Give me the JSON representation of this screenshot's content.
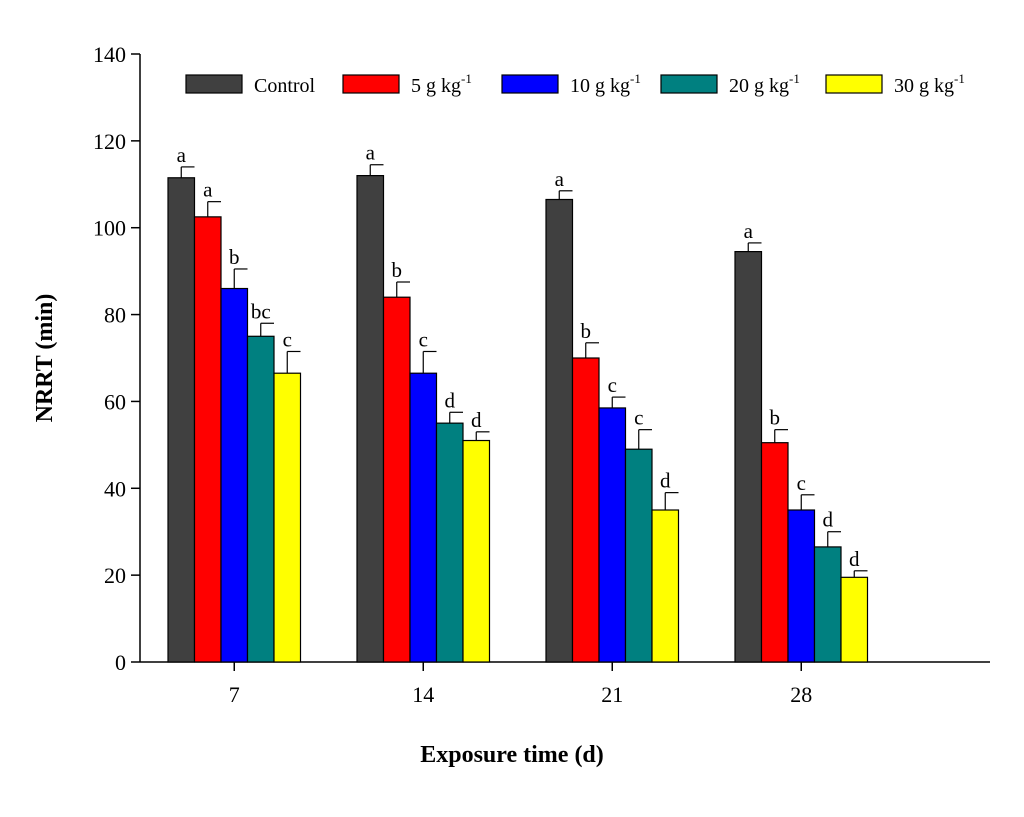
{
  "chart_data": {
    "type": "bar",
    "xlabel": "Exposure time (d)",
    "ylabel": "NRRT (min)",
    "ylim": [
      0,
      140
    ],
    "yticks": [
      0,
      20,
      40,
      60,
      80,
      100,
      120,
      140
    ],
    "categories": [
      "7",
      "14",
      "21",
      "28"
    ],
    "series": [
      {
        "name": "Control",
        "legend_main": "Control",
        "legend_sup": "",
        "color": "#404040",
        "values": [
          111.5,
          112,
          106.5,
          94.5
        ],
        "errors": [
          2.5,
          2.5,
          2,
          2
        ],
        "labels": [
          "a",
          "a",
          "a",
          "a"
        ]
      },
      {
        "name": "5  g kg-1",
        "legend_main": "5  g kg",
        "legend_sup": "-1",
        "color": "#ff0000",
        "values": [
          102.5,
          84,
          70,
          50.5
        ],
        "errors": [
          3.5,
          3.5,
          3.5,
          3
        ],
        "labels": [
          "a",
          "b",
          "b",
          "b"
        ]
      },
      {
        "name": "10 g kg-1",
        "legend_main": "10 g kg",
        "legend_sup": "-1",
        "color": "#0000ff",
        "values": [
          86,
          66.5,
          58.5,
          35
        ],
        "errors": [
          4.5,
          5,
          2.5,
          3.5
        ],
        "labels": [
          "b",
          "c",
          "c",
          "c"
        ]
      },
      {
        "name": "20 g kg-1",
        "legend_main": "20 g kg",
        "legend_sup": "-1",
        "color": "#008080",
        "values": [
          75,
          55,
          49,
          26.5
        ],
        "errors": [
          3,
          2.5,
          4.5,
          3.5
        ],
        "labels": [
          "bc",
          "d",
          "c",
          "d"
        ]
      },
      {
        "name": "30 g kg-1",
        "legend_main": "30 g kg",
        "legend_sup": "-1",
        "color": "#ffff00",
        "values": [
          66.5,
          51,
          35,
          19.5
        ],
        "errors": [
          5,
          2,
          4,
          1.5
        ],
        "labels": [
          "c",
          "d",
          "d",
          "d"
        ]
      }
    ],
    "legend_position": "top",
    "grid": false
  }
}
